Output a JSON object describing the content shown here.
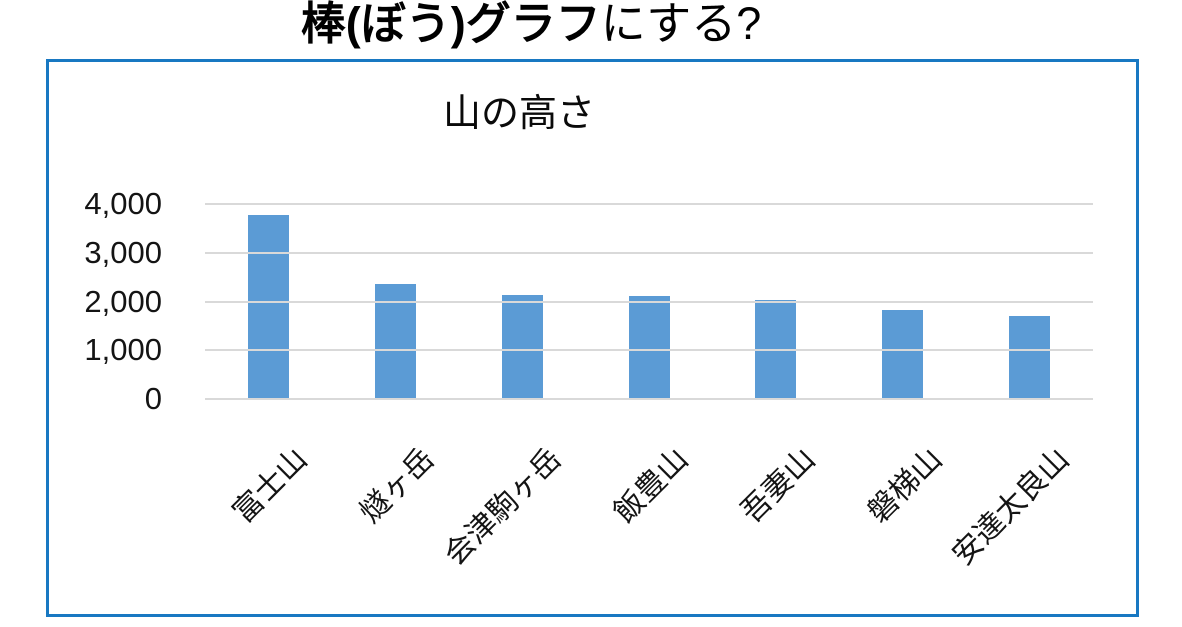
{
  "header": {
    "title_bold": "棒(ぼう)グラフ",
    "title_regular": "にする?"
  },
  "chart_data": {
    "type": "bar",
    "title": "山の高さ",
    "categories": [
      "富士山",
      "燧ヶ岳",
      "会津駒ヶ岳",
      "飯豊山",
      "吾妻山",
      "磐梯山",
      "安達太良山"
    ],
    "values": [
      3776,
      2356,
      2133,
      2105,
      2035,
      1816,
      1700
    ],
    "xlabel": "",
    "ylabel": "",
    "ylim": [
      0,
      4000
    ],
    "ytick_interval": 1000,
    "ytick_labels": [
      "0",
      "1,000",
      "2,000",
      "3,000",
      "4,000"
    ],
    "grid": true,
    "legend": "none",
    "bar_color": "#5B9BD5",
    "gridline_color": "#D9D9D9",
    "frame_border_color": "#1878C2"
  }
}
